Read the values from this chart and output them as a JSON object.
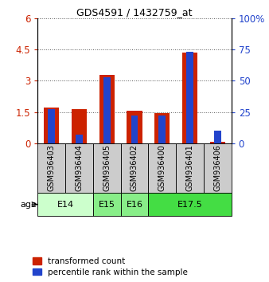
{
  "title": "GDS4591 / 1432759_at",
  "samples": [
    "GSM936403",
    "GSM936404",
    "GSM936405",
    "GSM936402",
    "GSM936400",
    "GSM936401",
    "GSM936406"
  ],
  "transformed_count": [
    1.72,
    1.62,
    3.28,
    1.55,
    1.45,
    4.35,
    0.08
  ],
  "percentile_rank": [
    27,
    7,
    53,
    22,
    22,
    73,
    10
  ],
  "age_groups": [
    {
      "label": "E14",
      "start": 0,
      "end": 2,
      "color": "#ccffcc"
    },
    {
      "label": "E15",
      "start": 2,
      "end": 3,
      "color": "#88ee88"
    },
    {
      "label": "E16",
      "start": 3,
      "end": 4,
      "color": "#88ee88"
    },
    {
      "label": "E17.5",
      "start": 4,
      "end": 7,
      "color": "#44dd44"
    }
  ],
  "left_yticks": [
    0,
    1.5,
    3,
    4.5,
    6
  ],
  "left_yticklabels": [
    "0",
    "1.5",
    "3",
    "4.5",
    "6"
  ],
  "right_yticks": [
    0,
    25,
    50,
    75,
    100
  ],
  "right_yticklabels": [
    "0",
    "25",
    "50",
    "75",
    "100%"
  ],
  "ylim_left": [
    0,
    6
  ],
  "ylim_right": [
    0,
    100
  ],
  "bar_color_red": "#cc2200",
  "bar_color_blue": "#2244cc",
  "legend_red": "transformed count",
  "legend_blue": "percentile rank within the sample",
  "age_label": "age",
  "grid_color": "#555555",
  "bar_width": 0.55,
  "blue_bar_width": 0.25,
  "label_fontsize": 7.0,
  "tick_fontsize": 8.5,
  "title_fontsize": 9,
  "sample_box_color": "#cccccc"
}
